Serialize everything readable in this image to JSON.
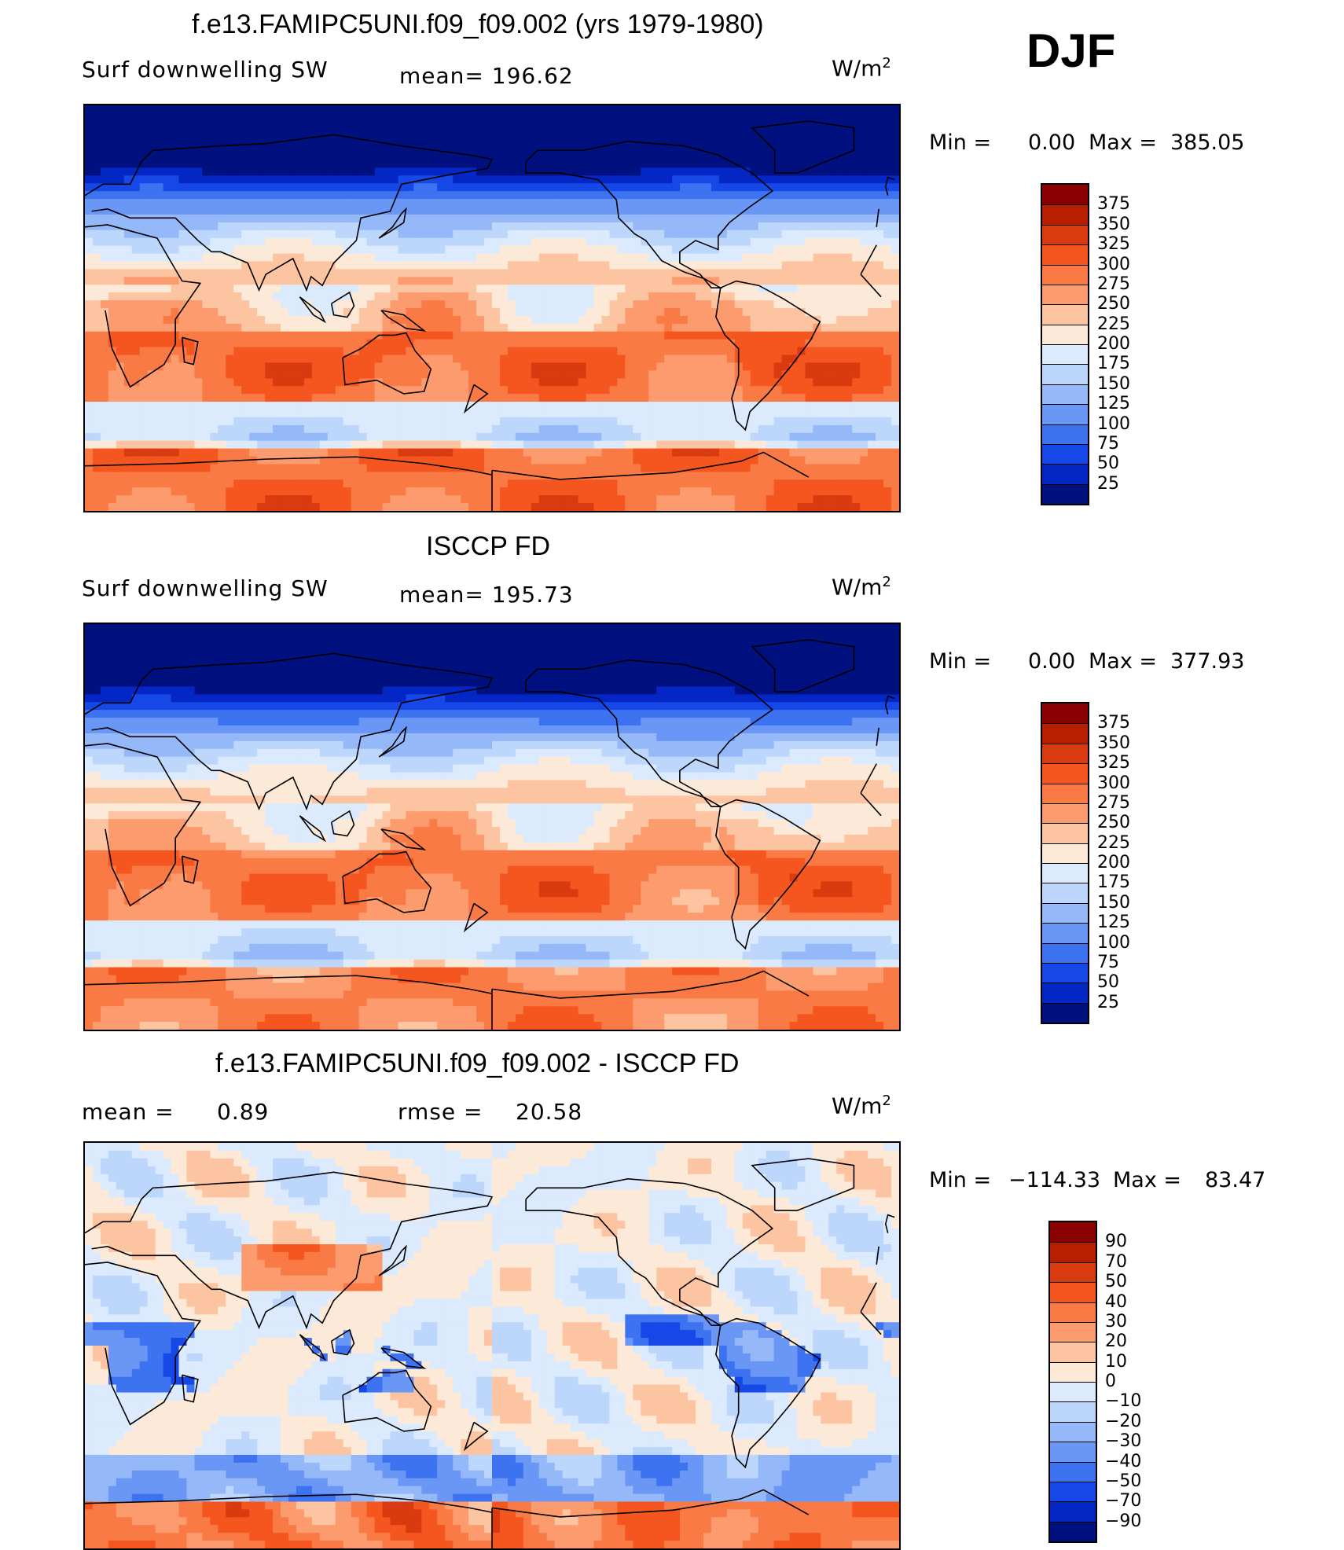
{
  "season": "DJF",
  "chart_data": [
    {
      "type": "heatmap",
      "title": "f.e13.FAMIPC5UNI.f09_f09.002 (yrs 1979-1980)",
      "variable": "Surf  downwelling  SW",
      "mean_label": "mean=  196.62",
      "units": "W/m",
      "units_sup": "2",
      "min_label": "Min  =",
      "min_value": "0.00",
      "max_label": "Max  =",
      "max_value": "385.05",
      "legend_levels": [
        "375",
        "350",
        "325",
        "300",
        "275",
        "250",
        "225",
        "200",
        "175",
        "150",
        "125",
        "100",
        "75",
        "50",
        "25"
      ],
      "colors": [
        "#8b0000",
        "#b81f00",
        "#d93a0f",
        "#f5561f",
        "#fa7a45",
        "#fc9c6e",
        "#fdc4a2",
        "#fde9d8",
        "#dbeafc",
        "#bdd6fb",
        "#95b8f8",
        "#6a97f5",
        "#3d72f0",
        "#1548e6",
        "#0426c4",
        "#00107f"
      ]
    },
    {
      "type": "heatmap",
      "title": "ISCCP FD",
      "variable": "Surf  downwelling  SW",
      "mean_label": "mean=  195.73",
      "units": "W/m",
      "units_sup": "2",
      "min_label": "Min  =",
      "min_value": "0.00",
      "max_label": "Max  =",
      "max_value": "377.93",
      "legend_levels": [
        "375",
        "350",
        "325",
        "300",
        "275",
        "250",
        "225",
        "200",
        "175",
        "150",
        "125",
        "100",
        "75",
        "50",
        "25"
      ],
      "colors": [
        "#8b0000",
        "#b81f00",
        "#d93a0f",
        "#f5561f",
        "#fa7a45",
        "#fc9c6e",
        "#fdc4a2",
        "#fde9d8",
        "#dbeafc",
        "#bdd6fb",
        "#95b8f8",
        "#6a97f5",
        "#3d72f0",
        "#1548e6",
        "#0426c4",
        "#00107f"
      ]
    },
    {
      "type": "heatmap",
      "title": "f.e13.FAMIPC5UNI.f09_f09.002 - ISCCP FD",
      "mean_label": "mean  =",
      "mean_value": "0.89",
      "rmse_label": "rmse  =",
      "rmse_value": "20.58",
      "units": "W/m",
      "units_sup": "2",
      "min_label": "Min  =",
      "min_value": "−114.33",
      "max_label": "Max  =",
      "max_value": "83.47",
      "legend_levels": [
        "90",
        "70",
        "50",
        "40",
        "30",
        "20",
        "10",
        "0",
        "−10",
        "−20",
        "−30",
        "−40",
        "−50",
        "−70",
        "−90"
      ],
      "colors": [
        "#8b0000",
        "#b81f00",
        "#d93a0f",
        "#f5561f",
        "#fa7a45",
        "#fc9c6e",
        "#fdc4a2",
        "#fde9d8",
        "#dbeafc",
        "#bdd6fb",
        "#95b8f8",
        "#6a97f5",
        "#3d72f0",
        "#1548e6",
        "#0426c4",
        "#00107f"
      ]
    }
  ]
}
